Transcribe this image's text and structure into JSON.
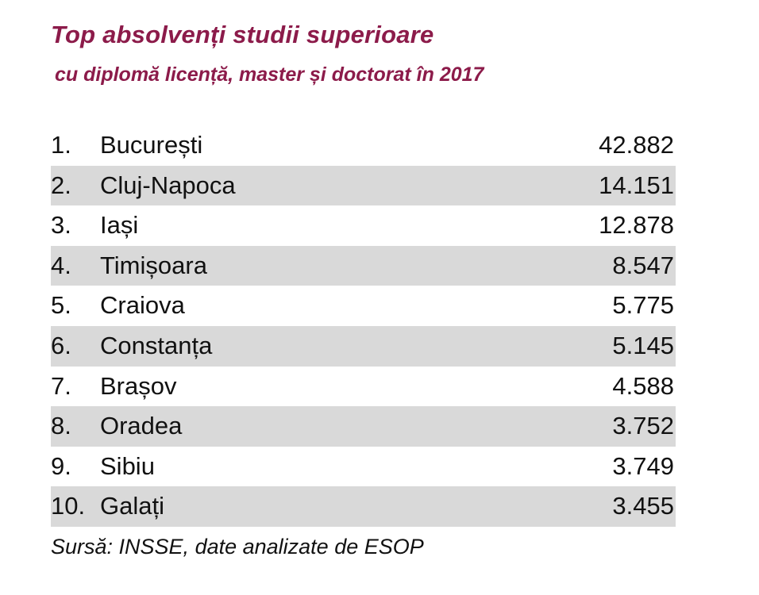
{
  "chart_data": {
    "type": "table",
    "title": "Top absolvenți studii superioare",
    "subtitle": "cu diplomă licență, master și doctorat în 2017",
    "columns": [
      "rank",
      "city",
      "value"
    ],
    "rows": [
      {
        "rank": "1.",
        "city": "București",
        "value": "42.882"
      },
      {
        "rank": "2.",
        "city": "Cluj-Napoca",
        "value": "14.151"
      },
      {
        "rank": "3.",
        "city": "Iași",
        "value": "12.878"
      },
      {
        "rank": "4.",
        "city": "Timișoara",
        "value": "8.547"
      },
      {
        "rank": "5.",
        "city": "Craiova",
        "value": "5.775"
      },
      {
        "rank": "6.",
        "city": "Constanța",
        "value": "5.145"
      },
      {
        "rank": "7.",
        "city": "Brașov",
        "value": "4.588"
      },
      {
        "rank": "8.",
        "city": "Oradea",
        "value": "3.752"
      },
      {
        "rank": "9.",
        "city": "Sibiu",
        "value": "3.749"
      },
      {
        "rank": "10.",
        "city": "Galați",
        "value": "3.455"
      }
    ],
    "values": [
      42882,
      14151,
      12878,
      8547,
      5775,
      5145,
      4588,
      3752,
      3749,
      3455
    ],
    "source": "Sursă: INSSE, date analizate de ESOP",
    "colors": {
      "title": "#8c1b4a",
      "shaded_row": "#d9d9d9",
      "text": "#111111"
    }
  }
}
